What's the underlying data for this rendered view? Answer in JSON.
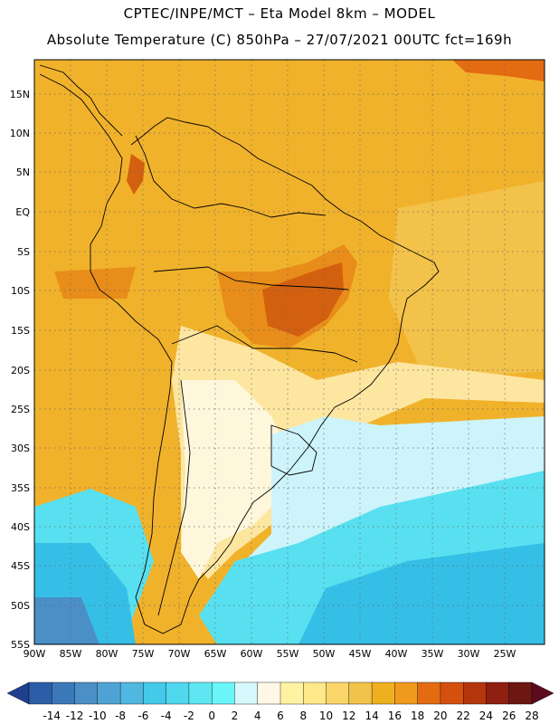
{
  "title_line1": "CPTEC/INPE/MCT –  Eta Model 8km – MODEL",
  "title_line2": "Absolute Temperature (C) 850hPa – 27/07/2021 00UTC fct=169h",
  "lat_labels": [
    "15N",
    "10N",
    "5N",
    "EQ",
    "5S",
    "10S",
    "15S",
    "20S",
    "25S",
    "30S",
    "35S",
    "40S",
    "45S",
    "50S",
    "55S"
  ],
  "lon_labels": [
    "90W",
    "85W",
    "80W",
    "75W",
    "70W",
    "65W",
    "60W",
    "55W",
    "50W",
    "45W",
    "40W",
    "35W",
    "30W",
    "25W"
  ],
  "colorbar": {
    "labels": [
      "-14",
      "-12",
      "-10",
      "-8",
      "-6",
      "-4",
      "-2",
      "0",
      "2",
      "4",
      "6",
      "8",
      "10",
      "12",
      "14",
      "16",
      "18",
      "20",
      "22",
      "24",
      "26",
      "28"
    ],
    "colors": [
      "#1f3f8f",
      "#2c5ea8",
      "#3b78b8",
      "#4a8fc6",
      "#4fa3d4",
      "#4fb7e0",
      "#45c9e8",
      "#4fd8ee",
      "#5ee6f2",
      "#6af6f8",
      "#d6f7fb",
      "#fff8e6",
      "#fff2a3",
      "#ffe88a",
      "#fad56a",
      "#f3c24a",
      "#efb020",
      "#f09a1e",
      "#e36b12",
      "#d4500f",
      "#b5360c",
      "#8f1f10",
      "#6c1712",
      "#5a0c1e"
    ]
  },
  "field_colors": {
    "sea_cold": "#35bfe6",
    "sea_mid": "#58e0f0",
    "cool": "#cdf4fa",
    "mild": "#fff7dc",
    "warm": "#fde6a0",
    "hot": "#f1b22b",
    "very_hot": "#e88d1a",
    "extreme": "#d3600f"
  }
}
